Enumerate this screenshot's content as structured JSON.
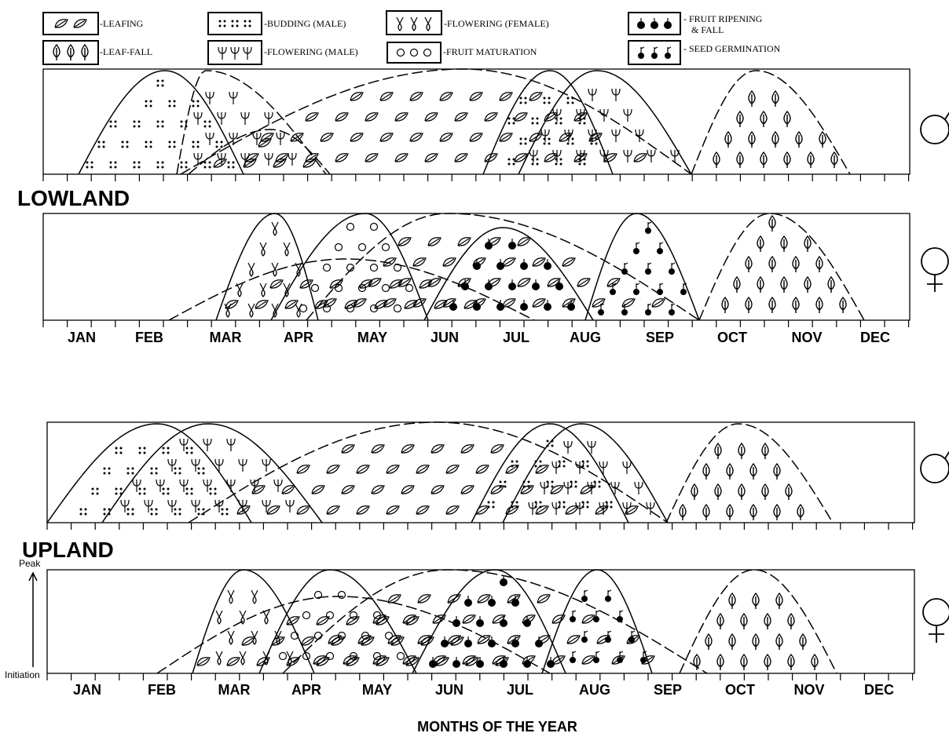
{
  "legend": [
    {
      "label": "-LEAFING"
    },
    {
      "label": "-BUDDING (MALE)"
    },
    {
      "label": "-FLOWERING (FEMALE)"
    },
    {
      "label": [
        "- FRUIT RIPENING",
        "& FALL"
      ]
    },
    {
      "label": "-LEAF-FALL"
    },
    {
      "label": "-FLOWERING (MALE)"
    },
    {
      "label": "-FRUIT MATURATION"
    },
    {
      "label": "- SEED GERMINATION"
    }
  ],
  "sections": {
    "lowland": "LOWLAND",
    "upland": "UPLAND"
  },
  "months_lowland": [
    "JAN",
    "FEB",
    "MAR",
    "APR",
    "MAY",
    "JUN",
    "JUL",
    "AUG",
    "SEP",
    "OCT",
    "NOV",
    "DEC"
  ],
  "months_upland": [
    "JAN",
    "FEB",
    "MAR",
    "APR",
    "MAY",
    "JUN",
    "JUL",
    "AUG",
    "SEP",
    "OCT",
    "NOV",
    "DEC"
  ],
  "axis": {
    "x_label": "MONTHS OF THE YEAR",
    "peak": "Peak",
    "initiation": "Initiation"
  }
}
